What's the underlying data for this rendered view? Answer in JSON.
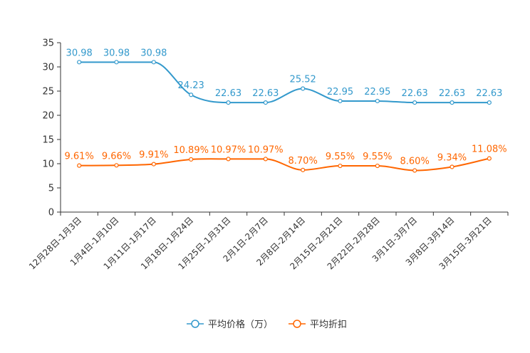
{
  "chart_data": {
    "type": "line",
    "title": "",
    "xlabel": "",
    "ylabel": "",
    "ylim": [
      0,
      35
    ],
    "yticks": [
      0,
      5,
      10,
      15,
      20,
      25,
      30,
      35
    ],
    "ytick_labels": [
      "0",
      "5",
      "10",
      "15",
      "20",
      "25",
      "30",
      "35"
    ],
    "grid": false,
    "legend_position": "bottom-center",
    "categories": [
      "12月28日-1月3日",
      "1月4日-1月10日",
      "1月11日-1月17日",
      "1月18日-1月24日",
      "1月25日-1月31日",
      "2月1日-2月7日",
      "2月8日-2月14日",
      "2月15日-2月21日",
      "2月22日-2月28日",
      "3月1日-3月7日",
      "3月8日-3月14日",
      "3月15日-3月21日"
    ],
    "series": [
      {
        "name": "平均价格（万）",
        "color": "#3399cc",
        "values": [
          30.98,
          30.98,
          30.98,
          24.23,
          22.63,
          22.63,
          25.52,
          22.95,
          22.95,
          22.63,
          22.63,
          22.63
        ],
        "labels": [
          "30.98",
          "30.98",
          "30.98",
          "24.23",
          "22.63",
          "22.63",
          "25.52",
          "22.95",
          "22.95",
          "22.63",
          "22.63",
          "22.63"
        ]
      },
      {
        "name": "平均折扣",
        "color": "#ff6600",
        "values": [
          9.61,
          9.66,
          9.91,
          10.89,
          10.97,
          10.97,
          8.7,
          9.55,
          9.55,
          8.6,
          9.34,
          11.08
        ],
        "labels": [
          "9.61%",
          "9.66%",
          "9.91%",
          "10.89%",
          "10.97%",
          "10.97%",
          "8.70%",
          "9.55%",
          "9.55%",
          "8.60%",
          "9.34%",
          "11.08%"
        ]
      }
    ]
  }
}
